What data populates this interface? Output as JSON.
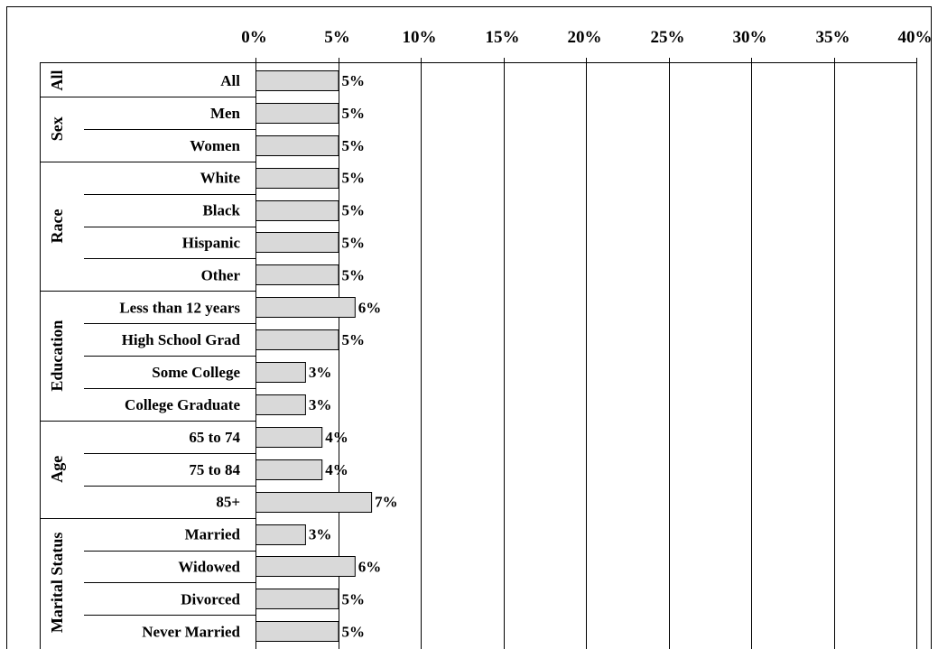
{
  "chart_data": {
    "type": "bar",
    "orientation": "horizontal",
    "title": "",
    "xlabel": "",
    "ylabel": "",
    "xlim": [
      0,
      40
    ],
    "x_ticks": [
      0,
      5,
      10,
      15,
      20,
      25,
      30,
      35,
      40
    ],
    "x_tick_labels": [
      "0%",
      "5%",
      "10%",
      "15%",
      "20%",
      "25%",
      "30%",
      "35%",
      "40%"
    ],
    "grid": "vertical",
    "legend": "none",
    "groups": [
      {
        "name": "All",
        "rows": [
          {
            "category": "All",
            "value": 5,
            "label": "5%"
          }
        ]
      },
      {
        "name": "Sex",
        "rows": [
          {
            "category": "Men",
            "value": 5,
            "label": "5%"
          },
          {
            "category": "Women",
            "value": 5,
            "label": "5%"
          }
        ]
      },
      {
        "name": "Race",
        "rows": [
          {
            "category": "White",
            "value": 5,
            "label": "5%"
          },
          {
            "category": "Black",
            "value": 5,
            "label": "5%"
          },
          {
            "category": "Hispanic",
            "value": 5,
            "label": "5%"
          },
          {
            "category": "Other",
            "value": 5,
            "label": "5%"
          }
        ]
      },
      {
        "name": "Education",
        "rows": [
          {
            "category": "Less than 12 years",
            "value": 6,
            "label": "6%"
          },
          {
            "category": "High School Grad",
            "value": 5,
            "label": "5%"
          },
          {
            "category": "Some College",
            "value": 3,
            "label": "3%"
          },
          {
            "category": "College Graduate",
            "value": 3,
            "label": "3%"
          }
        ]
      },
      {
        "name": "Age",
        "rows": [
          {
            "category": "65 to 74",
            "value": 4,
            "label": "4%"
          },
          {
            "category": "75 to 84",
            "value": 4,
            "label": "4%"
          },
          {
            "category": "85+",
            "value": 7,
            "label": "7%"
          }
        ]
      },
      {
        "name": "Marital Status",
        "rows": [
          {
            "category": "Married",
            "value": 3,
            "label": "3%"
          },
          {
            "category": "Widowed",
            "value": 6,
            "label": "6%"
          },
          {
            "category": "Divorced",
            "value": 5,
            "label": "5%"
          },
          {
            "category": "Never Married",
            "value": 5,
            "label": "5%"
          }
        ]
      }
    ],
    "colors": {
      "bar_fill": "#d9d9d9",
      "bar_stroke": "#000000",
      "grid": "#000000",
      "frame": "#000000"
    }
  }
}
